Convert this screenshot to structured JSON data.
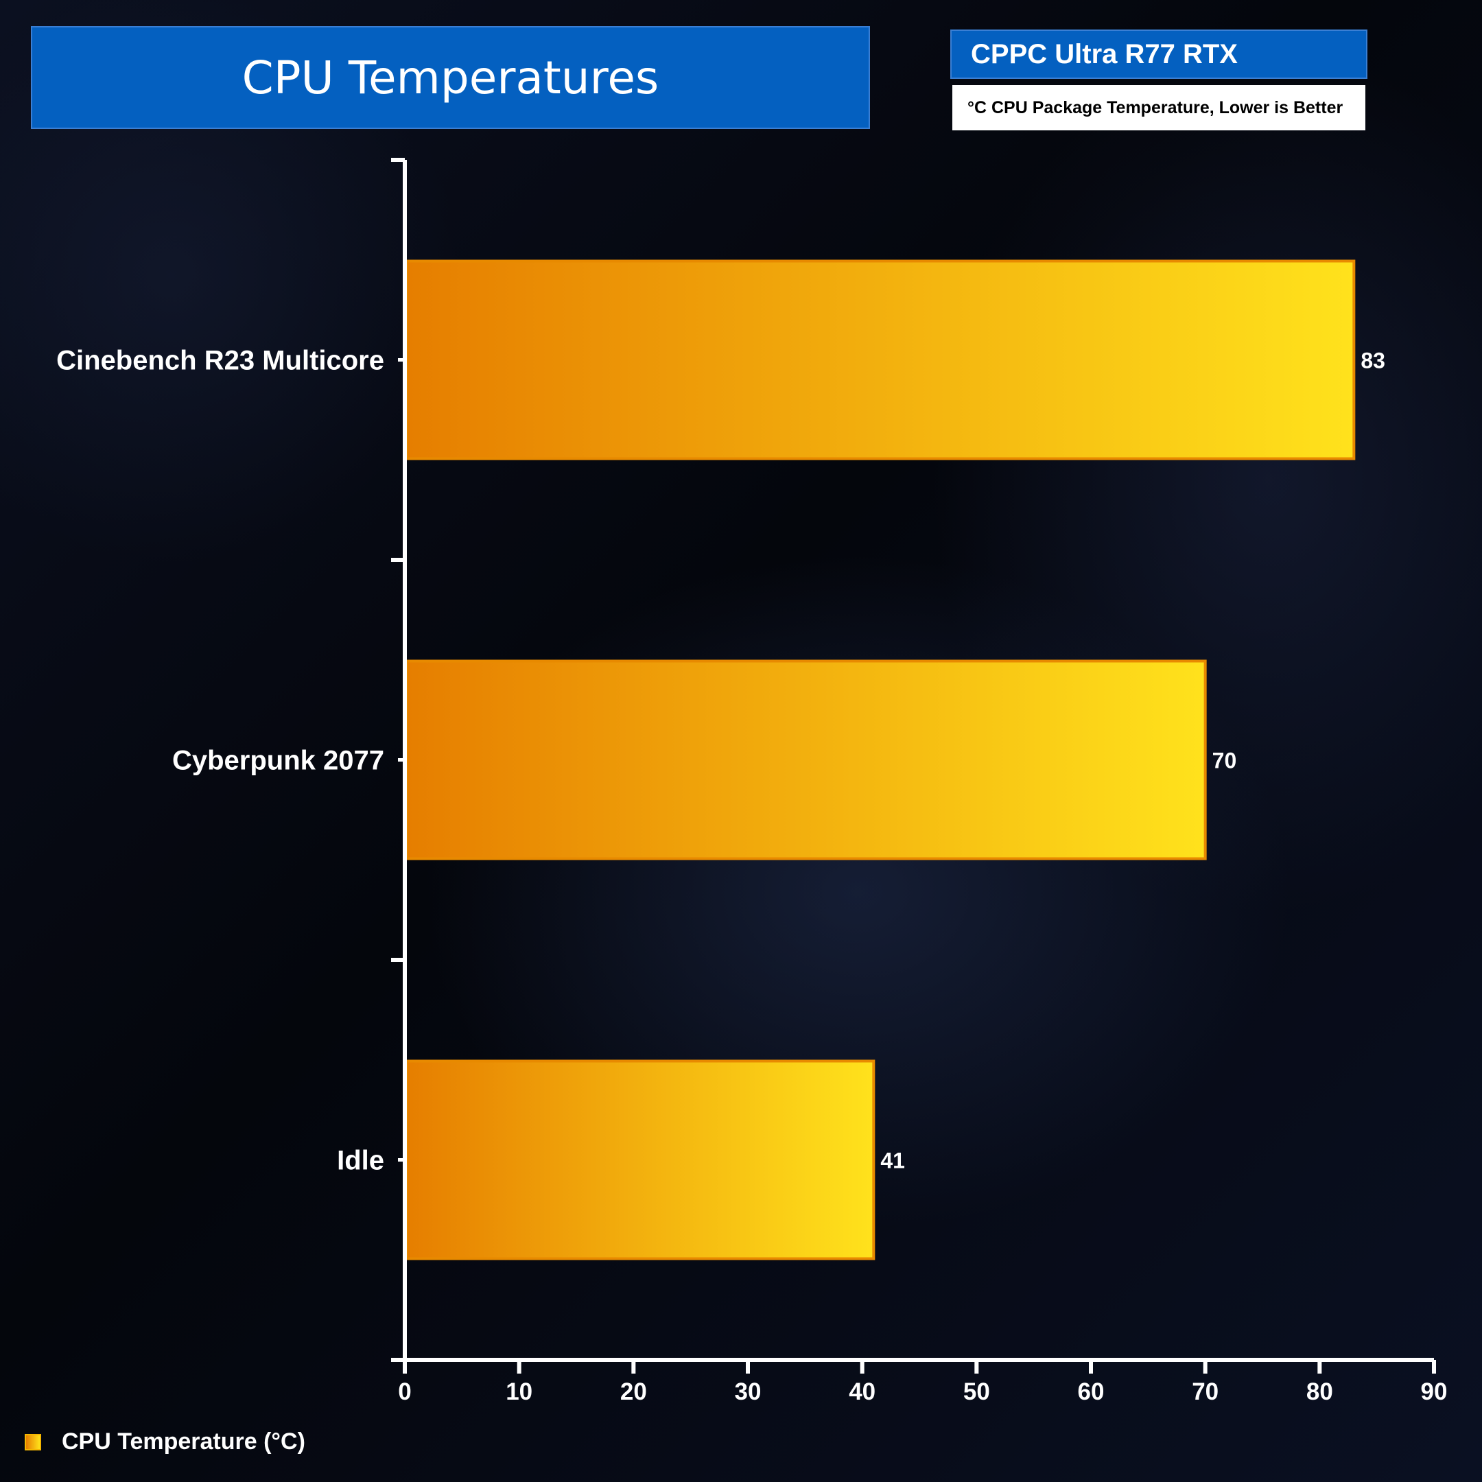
{
  "header": {
    "title": "CPU Temperatures",
    "system_name": "CPPC Ultra R77 RTX",
    "subtitle": "°C CPU Package Temperature, Lower is Better"
  },
  "legend": {
    "label": "CPU Temperature (°C)"
  },
  "colors": {
    "bar_start": "#e67e00",
    "bar_end": "#ffe21c",
    "bar_border": "#e88a00",
    "header_blue": "#0460c0",
    "axis": "#ffffff"
  },
  "chart_data": {
    "type": "bar",
    "orientation": "horizontal",
    "title": "CPU Temperatures",
    "subtitle": "°C CPU Package Temperature, Lower is Better",
    "categories": [
      "Cinebench R23 Multicore",
      "Cyberpunk 2077",
      "Idle"
    ],
    "series": [
      {
        "name": "CPU Temperature (°C)",
        "values": [
          83,
          70,
          41
        ]
      }
    ],
    "xlim": [
      0,
      90
    ],
    "xticks": [
      0,
      10,
      20,
      30,
      40,
      50,
      60,
      70,
      80,
      90
    ],
    "xlabel": "",
    "ylabel": "",
    "grid": false,
    "legend_position": "bottom-left"
  }
}
